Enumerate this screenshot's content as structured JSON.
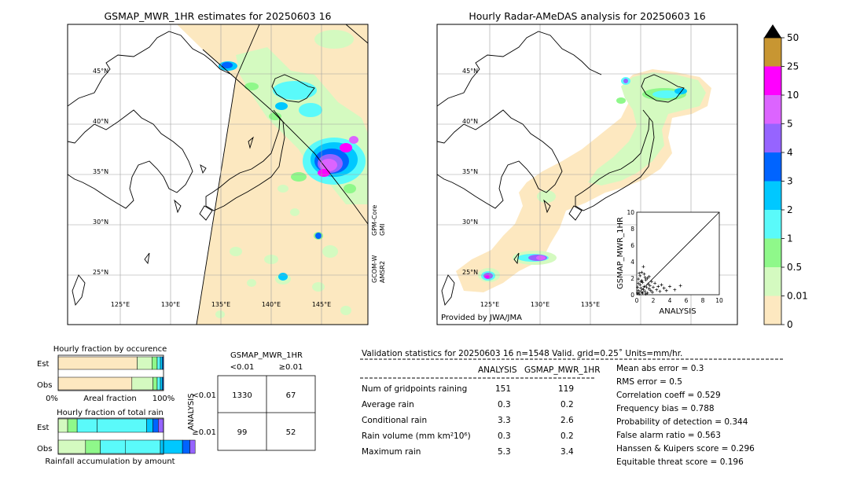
{
  "colors": {
    "ocean": "#ffffff",
    "land_coast": "#000000",
    "grid": "#a0a0a0",
    "swath": "#fce8c0",
    "bin_0_01": "#fde8c0",
    "bin_0_5": "#d4fac0",
    "bin_1": "#8ff88a",
    "bin_2": "#5afafa",
    "bin_3": "#00c8ff",
    "bin_4": "#0064ff",
    "bin_5": "#9664ff",
    "bin_10": "#dc64ff",
    "bin_25": "#ff00ff",
    "bin_50": "#c89632",
    "over": "#000000"
  },
  "left_map": {
    "title": "GSMAP_MWR_1HR estimates for 20250603 16",
    "lat_labels": [
      "45°N",
      "40°N",
      "35°N",
      "30°N",
      "25°N"
    ],
    "lon_labels": [
      "125°E",
      "130°E",
      "135°E",
      "140°E",
      "145°E"
    ],
    "sensor_top": "GPM-Core\nGMI",
    "sensor_top_line1": "GPM-Core",
    "sensor_top_line2": "GMI",
    "sensor_bottom_line1": "GCOM-W",
    "sensor_bottom_line2": "AMSR2"
  },
  "right_map": {
    "title": "Hourly Radar-AMeDAS analysis for 20250603 16",
    "lat_labels": [
      "45°N",
      "40°N",
      "35°N",
      "30°N",
      "25°N"
    ],
    "lon_labels": [
      "125°E",
      "130°E",
      "135°E"
    ],
    "credit": "Provided by JWA/JMA"
  },
  "colorbar": {
    "labels": [
      "0",
      "0.01",
      "0.5",
      "1",
      "2",
      "3",
      "4",
      "5",
      "10",
      "25",
      "50"
    ]
  },
  "chart_data": [
    {
      "type": "scatter",
      "xlabel": "ANALYSIS",
      "ylabel": "GSMAP_MWR_1HR",
      "xlim": [
        0,
        10
      ],
      "ylim": [
        0,
        10
      ],
      "xticks": [
        "0",
        "2",
        "4",
        "6",
        "8",
        "10"
      ],
      "yticks": [
        "0",
        "2",
        "4",
        "6",
        "8",
        "10"
      ],
      "points": [
        [
          0.1,
          0.2
        ],
        [
          0.2,
          0.5
        ],
        [
          0.3,
          0.1
        ],
        [
          0.4,
          1.2
        ],
        [
          0.5,
          0.8
        ],
        [
          0.6,
          0.3
        ],
        [
          0.7,
          1.5
        ],
        [
          0.8,
          0.6
        ],
        [
          0.9,
          1.0
        ],
        [
          1.0,
          0.4
        ],
        [
          1.1,
          1.8
        ],
        [
          1.2,
          0.9
        ],
        [
          1.3,
          0.2
        ],
        [
          1.4,
          1.3
        ],
        [
          1.5,
          0.7
        ],
        [
          1.6,
          1.1
        ],
        [
          1.7,
          0.5
        ],
        [
          1.8,
          1.6
        ],
        [
          1.9,
          0.3
        ],
        [
          2.0,
          0.9
        ],
        [
          2.2,
          1.4
        ],
        [
          2.4,
          0.6
        ],
        [
          2.6,
          1.0
        ],
        [
          2.8,
          0.4
        ],
        [
          3.0,
          1.2
        ],
        [
          3.3,
          0.8
        ],
        [
          3.6,
          0.5
        ],
        [
          4.0,
          1.0
        ],
        [
          4.6,
          0.6
        ],
        [
          5.3,
          1.1
        ],
        [
          0.2,
          1.9
        ],
        [
          0.4,
          2.3
        ],
        [
          0.6,
          2.7
        ],
        [
          0.8,
          3.4
        ],
        [
          1.0,
          2.1
        ],
        [
          0.3,
          2.6
        ],
        [
          0.5,
          1.6
        ],
        [
          0.7,
          0.2
        ],
        [
          1.1,
          0.1
        ],
        [
          1.5,
          2.2
        ],
        [
          0.1,
          0.9
        ],
        [
          0.2,
          1.4
        ],
        [
          0.9,
          2.5
        ],
        [
          1.3,
          2.0
        ],
        [
          0.6,
          1.7
        ]
      ]
    },
    {
      "type": "bar",
      "title": "Hourly fraction by occurence",
      "categories": [
        "Est",
        "Obs"
      ],
      "xlabel": "Areal fraction",
      "xtick_labels": [
        "0%",
        "100%"
      ],
      "series": [
        {
          "values": [
            0.75,
            0.7
          ]
        },
        {
          "values": [
            0.14,
            0.2
          ]
        },
        {
          "values": [
            0.05,
            0.04
          ]
        },
        {
          "values": [
            0.03,
            0.03
          ]
        },
        {
          "values": [
            0.02,
            0.02
          ]
        },
        {
          "values": [
            0.01,
            0.01
          ]
        }
      ]
    },
    {
      "type": "bar",
      "title": "Hourly fraction of total rain",
      "categories": [
        "Est",
        "Obs"
      ],
      "xlabel": "Rainfall accumulation by amount",
      "series": [
        {
          "values": [
            0.09,
            0.26
          ]
        },
        {
          "values": [
            0.09,
            0.14
          ]
        },
        {
          "values": [
            0.19,
            0.24
          ]
        },
        {
          "values": [
            0.47,
            0.33
          ]
        },
        {
          "values": [
            0.06,
            0.21
          ]
        },
        {
          "values": [
            0.05,
            0.07
          ]
        },
        {
          "values": [
            0.05,
            0.05
          ]
        }
      ]
    },
    {
      "type": "table",
      "title": "GSMAP_MWR_1HR",
      "col_headers": [
        "<0.01",
        "≥0.01"
      ],
      "row_label": "ANALYSIS",
      "row_headers": [
        "<0.01",
        "≥0.01"
      ],
      "cells": [
        [
          1330,
          67
        ],
        [
          99,
          52
        ]
      ]
    }
  ],
  "validation": {
    "header": "Validation statistics for 20250603 16  n=1548 Valid. grid=0.25˚ Units=mm/hr.",
    "col_analysis": "ANALYSIS",
    "col_gsmap": "GSMAP_MWR_1HR",
    "rows": [
      {
        "label": "Num of gridpoints raining",
        "analysis": "151",
        "gsmap": "119"
      },
      {
        "label": "Average rain",
        "analysis": "0.3",
        "gsmap": "0.2"
      },
      {
        "label": "Conditional rain",
        "analysis": "3.3",
        "gsmap": "2.6"
      },
      {
        "label": "Rain volume (mm km²10⁶)",
        "analysis": "0.3",
        "gsmap": "0.2"
      },
      {
        "label": "Maximum rain",
        "analysis": "5.3",
        "gsmap": "3.4"
      }
    ],
    "scores": [
      "Mean abs error =    0.3",
      "RMS error =    0.5",
      "Correlation coeff =  0.529",
      "Frequency bias =  0.788",
      "Probability of detection =  0.344",
      "False alarm ratio =  0.563",
      "Hanssen & Kuipers score =  0.296",
      "Equitable threat score =  0.196"
    ]
  }
}
